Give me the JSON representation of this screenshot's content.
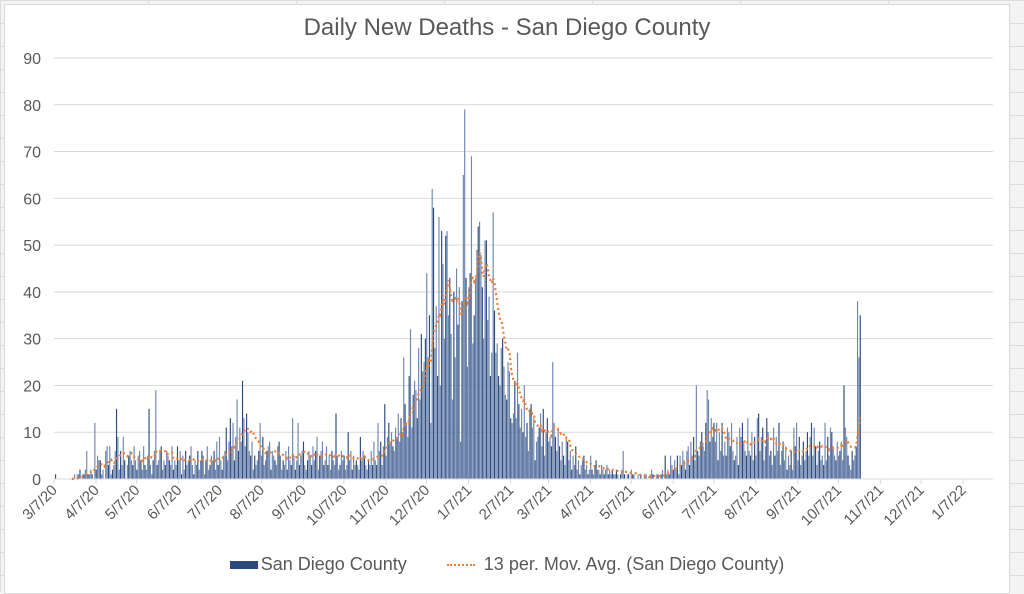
{
  "chart_data": {
    "type": "bar",
    "title": "Daily New Deaths - San Diego County",
    "xlabel": "",
    "ylabel": "",
    "ylim": [
      0,
      90
    ],
    "yticks": [
      0,
      10,
      20,
      30,
      40,
      50,
      60,
      70,
      80,
      90
    ],
    "grid": true,
    "legend_position": "bottom",
    "start_date": "3/7/20",
    "xtick_labels": [
      "3/7/20",
      "4/7/20",
      "5/7/20",
      "6/7/20",
      "7/7/20",
      "8/7/20",
      "9/7/20",
      "10/7/20",
      "11/7/20",
      "12/7/20",
      "1/7/21",
      "2/7/21",
      "3/7/21",
      "4/7/21",
      "5/7/21",
      "6/7/21",
      "7/7/21",
      "8/7/21",
      "9/7/21",
      "10/7/21",
      "11/7/21",
      "12/7/21",
      "1/7/22"
    ],
    "xtick_day_offsets": [
      0,
      31,
      61,
      92,
      122,
      153,
      184,
      214,
      245,
      275,
      306,
      337,
      365,
      396,
      426,
      457,
      487,
      518,
      549,
      579,
      610,
      640,
      671
    ],
    "series": [
      {
        "name": "San Diego County",
        "kind": "bar",
        "color": "#2c4a7e",
        "color_alt": "#6f86ae",
        "values": [
          1,
          0,
          0,
          0,
          0,
          0,
          0,
          0,
          0,
          0,
          0,
          0,
          0,
          0,
          1,
          0,
          1,
          1,
          2,
          0,
          1,
          1,
          2,
          6,
          1,
          1,
          2,
          1,
          0,
          12,
          2,
          5,
          4,
          4,
          1,
          2,
          0,
          6,
          7,
          3,
          7,
          1,
          2,
          3,
          6,
          15,
          9,
          2,
          6,
          3,
          9,
          4,
          0,
          3,
          5,
          6,
          4,
          3,
          7,
          4,
          2,
          5,
          6,
          4,
          2,
          7,
          3,
          2,
          5,
          15,
          3,
          1,
          4,
          6,
          19,
          3,
          4,
          6,
          7,
          2,
          4,
          3,
          6,
          5,
          4,
          3,
          7,
          2,
          4,
          3,
          7,
          4,
          6,
          1,
          5,
          2,
          6,
          3,
          4,
          5,
          7,
          3,
          1,
          4,
          3,
          6,
          2,
          4,
          6,
          5,
          1,
          4,
          7,
          2,
          3,
          5,
          4,
          6,
          2,
          8,
          3,
          9,
          4,
          2,
          5,
          6,
          11,
          4,
          8,
          13,
          7,
          12,
          4,
          9,
          17,
          6,
          11,
          8,
          21,
          13,
          7,
          14,
          10,
          6,
          5,
          8,
          2,
          5,
          3,
          4,
          6,
          12,
          5,
          9,
          3,
          4,
          6,
          7,
          8,
          2,
          6,
          5,
          4,
          3,
          7,
          8,
          5,
          2,
          4,
          3,
          6,
          2,
          7,
          4,
          3,
          13,
          5,
          2,
          4,
          12,
          3,
          5,
          6,
          8,
          3,
          2,
          4,
          6,
          5,
          3,
          7,
          4,
          6,
          9,
          2,
          5,
          6,
          8,
          3,
          4,
          7,
          3,
          5,
          2,
          6,
          4,
          3,
          14,
          5,
          2,
          3,
          6,
          4,
          5,
          2,
          3,
          10,
          4,
          6,
          2,
          5,
          3,
          4,
          3,
          2,
          9,
          4,
          6,
          5,
          3,
          2,
          4,
          3,
          6,
          3,
          8,
          4,
          3,
          12,
          6,
          8,
          3,
          7,
          16,
          5,
          9,
          12,
          8,
          10,
          7,
          6,
          11,
          9,
          14,
          8,
          13,
          10,
          26,
          16,
          12,
          9,
          22,
          32,
          11,
          18,
          21,
          19,
          13,
          28,
          17,
          31,
          23,
          25,
          30,
          44,
          26,
          35,
          12,
          62,
          58,
          28,
          37,
          22,
          56,
          20,
          53,
          46,
          30,
          52,
          53,
          35,
          43,
          31,
          17,
          40,
          26,
          45,
          33,
          41,
          8,
          38,
          65,
          79,
          43,
          24,
          41,
          44,
          69,
          29,
          35,
          43,
          49,
          54,
          55,
          48,
          41,
          30,
          51,
          51,
          34,
          39,
          22,
          27,
          57,
          36,
          27,
          29,
          22,
          20,
          28,
          30,
          24,
          18,
          17,
          25,
          23,
          13,
          12,
          14,
          21,
          13,
          27,
          16,
          11,
          15,
          10,
          20,
          9,
          12,
          6,
          15,
          16,
          11,
          13,
          4,
          8,
          9,
          11,
          14,
          7,
          15,
          5,
          10,
          13,
          8,
          9,
          7,
          25,
          12,
          9,
          6,
          11,
          7,
          4,
          8,
          5,
          3,
          9,
          8,
          4,
          6,
          2,
          5,
          3,
          7,
          2,
          4,
          1,
          3,
          4,
          5,
          2,
          3,
          1,
          2,
          5,
          2,
          1,
          3,
          4,
          2,
          2,
          1,
          3,
          2,
          1,
          2,
          3,
          1,
          2,
          1,
          2,
          1,
          1,
          2,
          1,
          0,
          1,
          2,
          6,
          1,
          0,
          1,
          1,
          0,
          2,
          1,
          1,
          0,
          0,
          1,
          0,
          1,
          0,
          0,
          1,
          1,
          0,
          0,
          1,
          2,
          1,
          0,
          0,
          1,
          1,
          0,
          1,
          2,
          0,
          5,
          1,
          2,
          1,
          5,
          3,
          2,
          4,
          2,
          5,
          1,
          5,
          3,
          6,
          4,
          2,
          6,
          7,
          3,
          8,
          5,
          9,
          4,
          20,
          6,
          5,
          8,
          10,
          7,
          6,
          12,
          19,
          17,
          8,
          13,
          9,
          12,
          8,
          12,
          4,
          10,
          6,
          12,
          5,
          8,
          5,
          11,
          10,
          7,
          12,
          6,
          4,
          5,
          9,
          3,
          11,
          9,
          12,
          8,
          6,
          5,
          13,
          6,
          5,
          10,
          4,
          9,
          5,
          13,
          14,
          6,
          9,
          11,
          4,
          7,
          13,
          10,
          5,
          6,
          3,
          11,
          5,
          9,
          6,
          12,
          3,
          6,
          8,
          4,
          7,
          2,
          5,
          3,
          6,
          2,
          11,
          7,
          12,
          4,
          9,
          3,
          5,
          8,
          4,
          6,
          10,
          5,
          9,
          12,
          5,
          11,
          7,
          3,
          6,
          8,
          4,
          5,
          3,
          12,
          4,
          9,
          5,
          11,
          10,
          7,
          5,
          4,
          8,
          5,
          6,
          8,
          4,
          20,
          11,
          9,
          5,
          3,
          2,
          6,
          4,
          5,
          7,
          38,
          26,
          35
        ],
        "legend_label": "San Diego County"
      },
      {
        "name": "13 per. Mov. Avg. (San Diego County)",
        "kind": "moving_average",
        "period": 13,
        "color": "#ed7d31",
        "legend_label": "13 per. Mov. Avg. (San Diego County)"
      }
    ]
  }
}
